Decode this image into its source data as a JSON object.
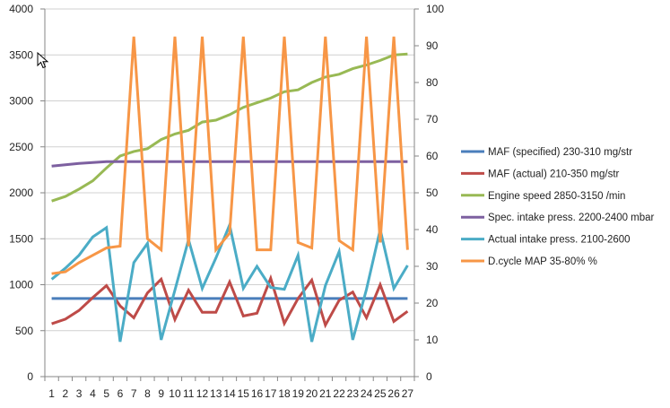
{
  "chart_data": {
    "type": "line",
    "title": "",
    "xlabel": "",
    "ylabel": "",
    "categories": [
      1,
      2,
      3,
      4,
      5,
      6,
      7,
      8,
      9,
      10,
      11,
      12,
      13,
      14,
      15,
      16,
      17,
      18,
      19,
      20,
      21,
      22,
      23,
      24,
      25,
      26,
      27
    ],
    "ylim": [
      0,
      4000
    ],
    "y_ticks": [
      0,
      500,
      1000,
      1500,
      2000,
      2500,
      3000,
      3500,
      4000
    ],
    "y2lim": [
      0,
      100
    ],
    "y2_ticks": [
      0,
      10,
      20,
      30,
      40,
      50,
      60,
      70,
      80,
      90,
      100
    ],
    "grid": true,
    "legend_position": "right",
    "series": [
      {
        "name": "MAF (specified) 230-310  mg/str",
        "color": "#4a7ebb",
        "axis": "left",
        "values": [
          850,
          850,
          850,
          850,
          850,
          850,
          850,
          850,
          850,
          850,
          850,
          850,
          850,
          850,
          850,
          850,
          850,
          850,
          850,
          850,
          850,
          850,
          850,
          850,
          850,
          850,
          850
        ]
      },
      {
        "name": "MAF (actual) 210-350  mg/str",
        "color": "#be4b48",
        "axis": "left",
        "values": [
          575,
          625,
          720,
          860,
          990,
          770,
          640,
          910,
          1060,
          620,
          940,
          700,
          700,
          1030,
          660,
          690,
          1070,
          580,
          850,
          1050,
          560,
          830,
          920,
          640,
          1000,
          600,
          710
        ]
      },
      {
        "name": "Engine speed 2850-3150  /min",
        "color": "#98b954",
        "axis": "left",
        "values": [
          1910,
          1960,
          2040,
          2130,
          2270,
          2400,
          2450,
          2480,
          2580,
          2640,
          2680,
          2770,
          2790,
          2850,
          2930,
          2980,
          3030,
          3100,
          3120,
          3200,
          3260,
          3290,
          3350,
          3390,
          3440,
          3500,
          3510
        ]
      },
      {
        "name": "Spec. intake press. 2200-2400  mbar",
        "color": "#7d60a0",
        "axis": "left",
        "values": [
          2290,
          2305,
          2320,
          2330,
          2340,
          2340,
          2340,
          2340,
          2340,
          2340,
          2340,
          2340,
          2340,
          2340,
          2340,
          2340,
          2340,
          2340,
          2340,
          2340,
          2340,
          2340,
          2340,
          2340,
          2340,
          2340,
          2340
        ]
      },
      {
        "name": "Actual intake press. 2100-2600",
        "color": "#4bacc6",
        "axis": "left",
        "values": [
          1060,
          1180,
          1320,
          1520,
          1620,
          380,
          1240,
          1450,
          400,
          940,
          1490,
          960,
          1290,
          1650,
          960,
          1200,
          970,
          950,
          1320,
          380,
          990,
          1360,
          400,
          950,
          1600,
          960,
          1210
        ]
      },
      {
        "name": "D.cycle MAP 35-80% %",
        "color": "#f79646",
        "axis": "right",
        "values": [
          28,
          28.5,
          31,
          33,
          35,
          35.5,
          92.5,
          37.5,
          34.5,
          92.5,
          35.5,
          92.5,
          34.5,
          39,
          92.5,
          34.5,
          34.5,
          92.5,
          36.5,
          35,
          92.5,
          37,
          34.5,
          92.5,
          36.5,
          92.5,
          34.5
        ]
      }
    ]
  }
}
